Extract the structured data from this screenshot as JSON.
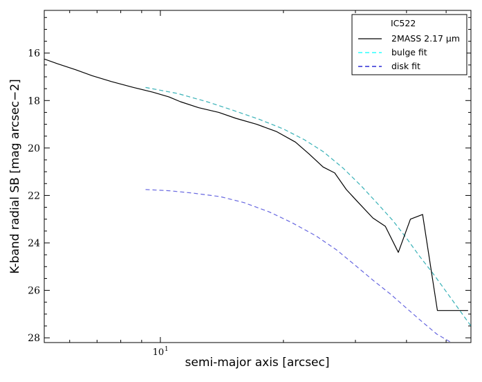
{
  "chart_data": {
    "type": "line",
    "title": "",
    "xlabel": "semi-major axis [arcsec]",
    "ylabel": "K-band radial SB [mag arcsec−2]",
    "x_scale": "log",
    "xlim": [
      5.2,
      57.5
    ],
    "ylim": [
      28.2,
      14.2
    ],
    "y_inverted": true,
    "x_ticks": [
      {
        "value": 10,
        "label": "10",
        "exp": "1"
      }
    ],
    "y_ticks": [
      16,
      18,
      20,
      22,
      24,
      26,
      28
    ],
    "grid": false,
    "legend": {
      "placement": "top-right",
      "title": "IC522",
      "entries": [
        {
          "label": "2MASS 2.17 μm",
          "color": "#000000",
          "style": "solid"
        },
        {
          "label": "bulge fit",
          "color": "#00ffff",
          "style": "dashed"
        },
        {
          "label": "disk fit",
          "color": "#0000cc",
          "style": "dashed"
        }
      ]
    },
    "series": [
      {
        "name": "2MASS 2.17 μm",
        "color": "#000000",
        "style": "solid",
        "x": [
          5.2,
          5.6,
          6.2,
          6.8,
          7.6,
          8.6,
          9.6,
          10.5,
          11.2,
          12.4,
          13.9,
          15.3,
          17.2,
          19.2,
          21.4,
          23.1,
          25.0,
          26.7,
          28.5,
          30.5,
          33.1,
          35.5,
          38.2,
          40.9,
          43.8,
          47.6,
          51.8,
          56.6
        ],
        "y": [
          16.25,
          16.45,
          16.7,
          16.95,
          17.2,
          17.45,
          17.65,
          17.85,
          18.05,
          18.3,
          18.5,
          18.75,
          19.0,
          19.3,
          19.75,
          20.25,
          20.8,
          21.05,
          21.75,
          22.3,
          22.95,
          23.3,
          24.4,
          23.0,
          22.8,
          26.85,
          26.85,
          26.85
        ]
      },
      {
        "name": "bulge fit",
        "color": "#00ffff",
        "style": "dashed",
        "x": [
          9.2,
          11.0,
          13.0,
          15.0,
          17.5,
          20.0,
          22.5,
          25.0,
          28.0,
          31.0,
          34.0,
          37.0,
          40.0,
          43.0,
          46.5,
          50.0,
          54.0,
          57.5
        ],
        "y": [
          17.45,
          17.7,
          18.05,
          18.4,
          18.8,
          19.2,
          19.65,
          20.15,
          20.85,
          21.6,
          22.35,
          23.05,
          23.8,
          24.55,
          25.3,
          26.05,
          26.85,
          27.5
        ]
      },
      {
        "name": "disk fit",
        "color": "#0000cc",
        "style": "dashed",
        "x": [
          9.2,
          10.5,
          12.0,
          14.0,
          16.0,
          18.5,
          21.0,
          24.0,
          27.0,
          30.0,
          33.0,
          36.5,
          40.0,
          43.5,
          47.5,
          51.5
        ],
        "y": [
          21.75,
          21.8,
          21.9,
          22.05,
          22.3,
          22.7,
          23.15,
          23.7,
          24.3,
          24.95,
          25.55,
          26.15,
          26.75,
          27.3,
          27.85,
          28.2
        ]
      }
    ]
  }
}
